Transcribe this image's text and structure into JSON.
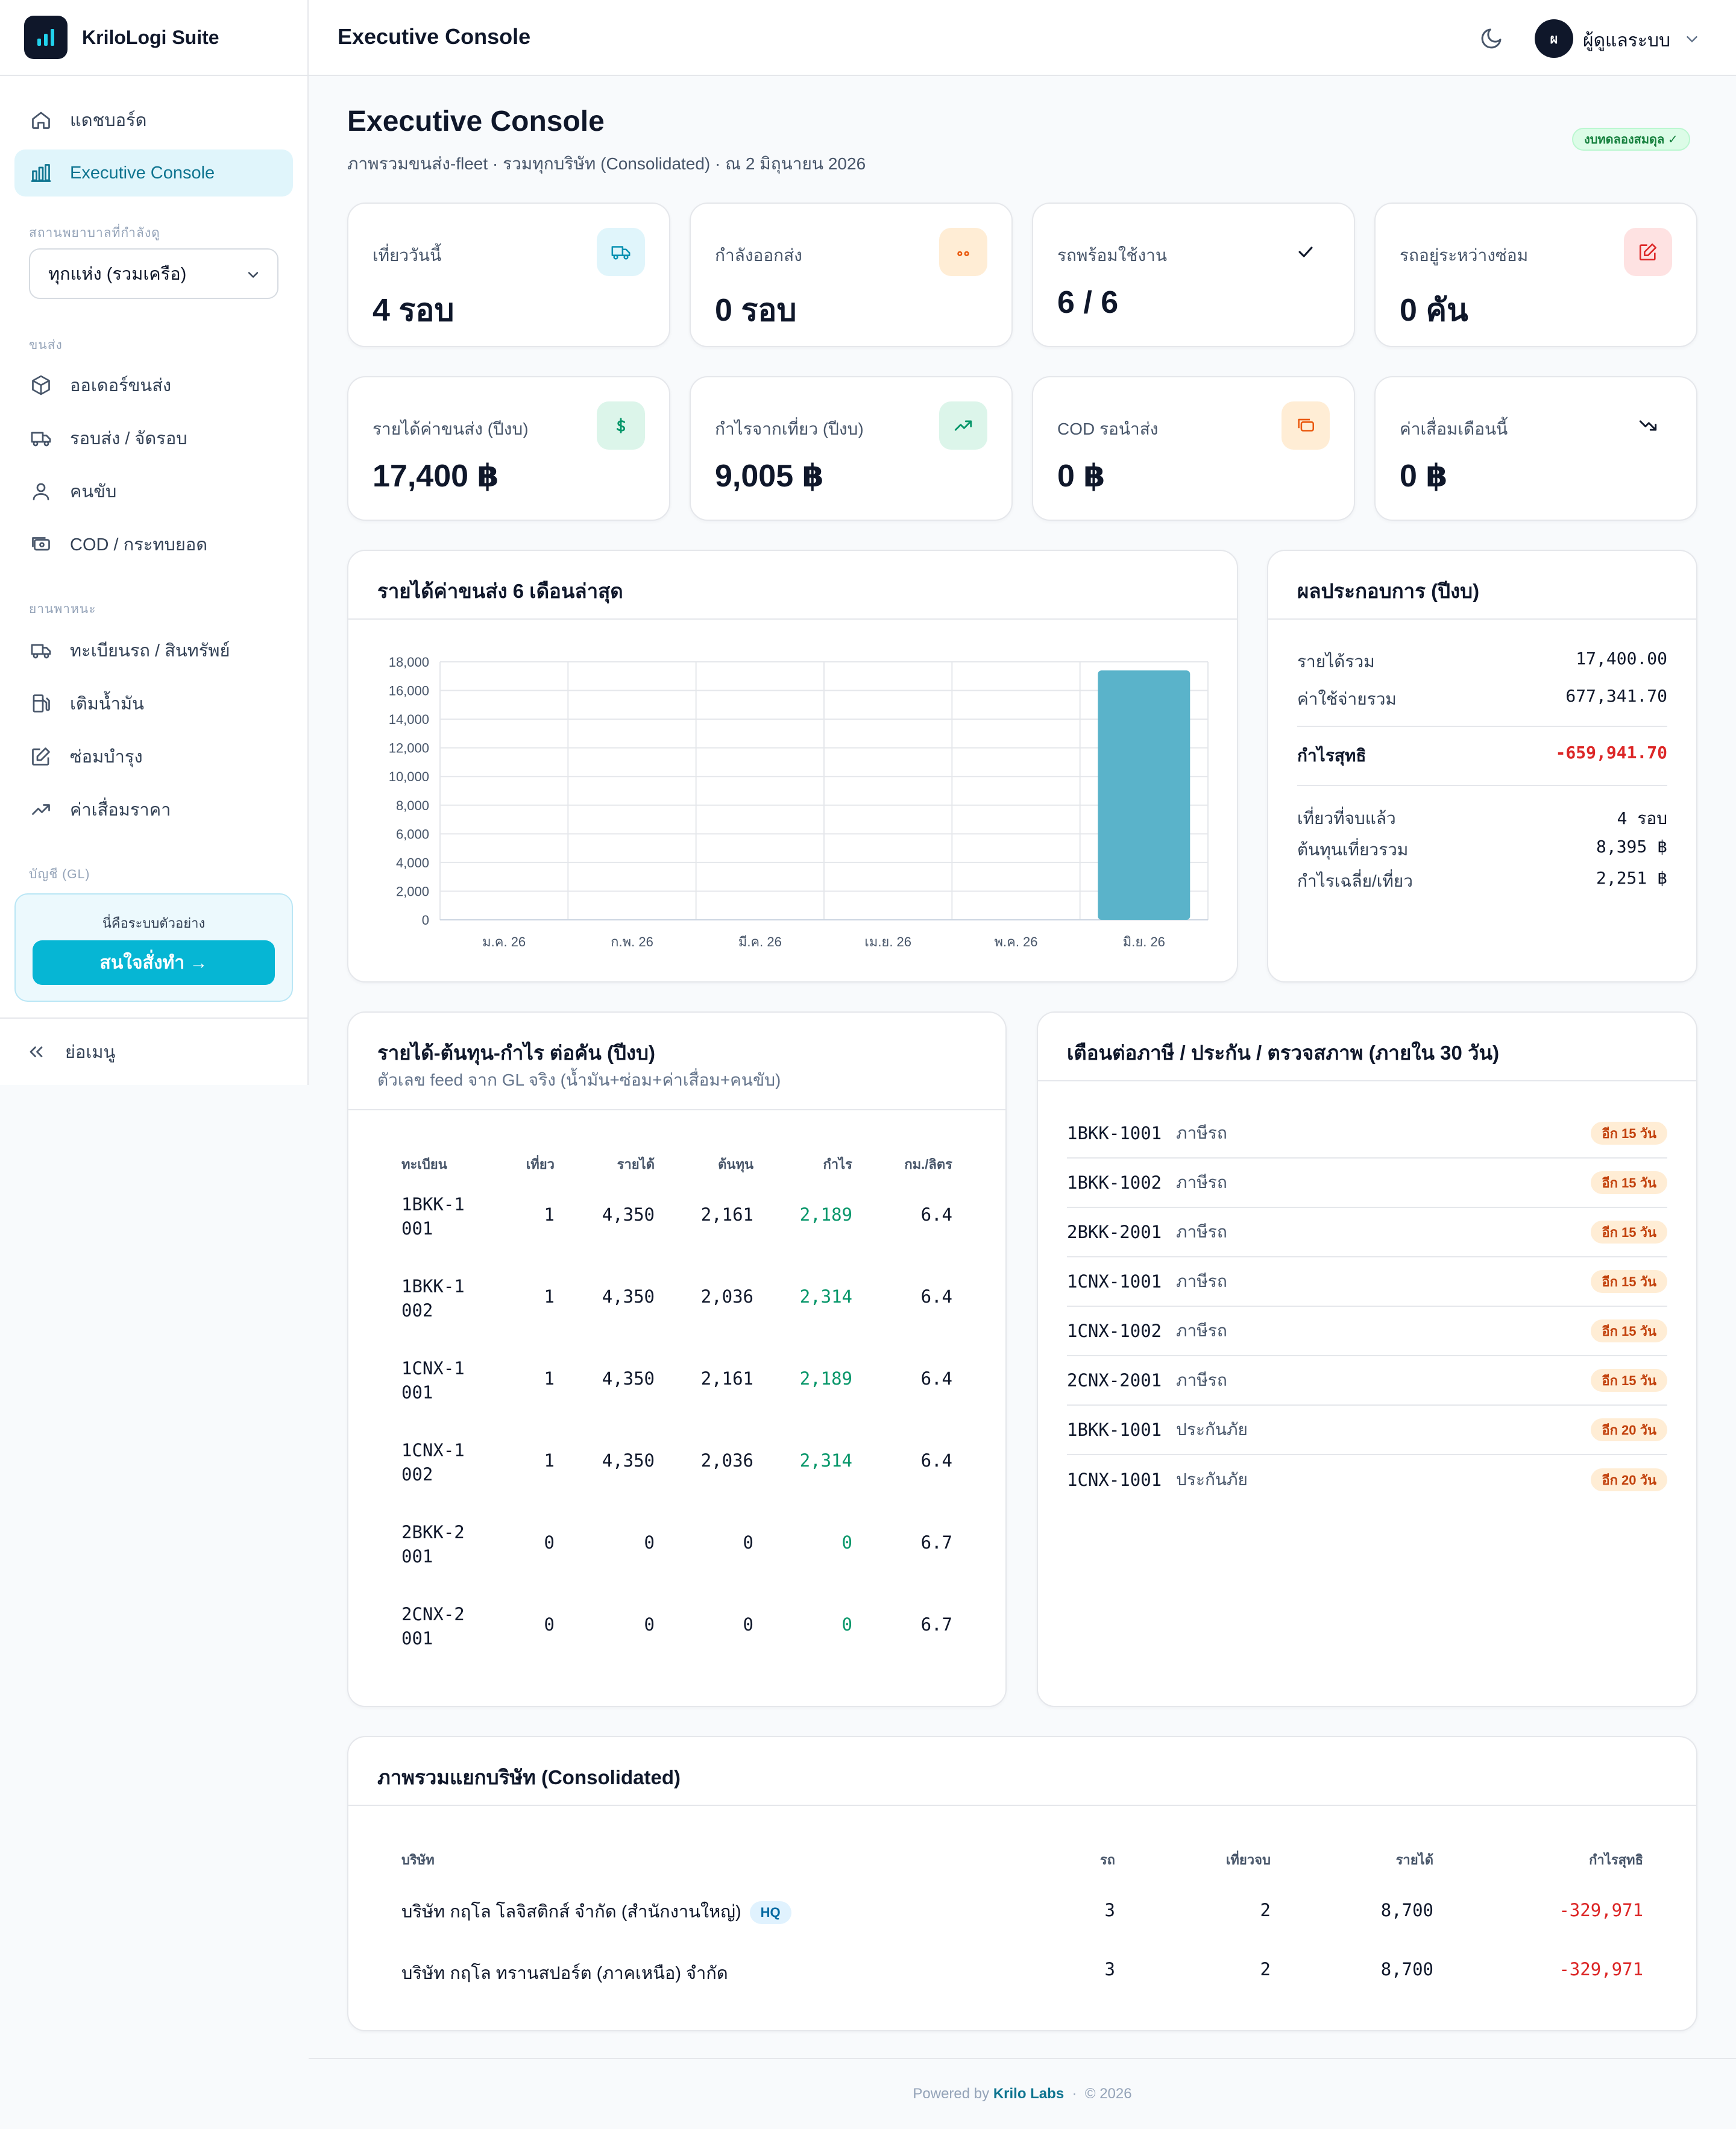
{
  "app": {
    "brand": "KriloLogi Suite",
    "header_title": "Executive Console",
    "user_initial": "ผ",
    "user_name": "ผู้ดูแลระบบ"
  },
  "sidebar": {
    "items": [
      {
        "label": "แดชบอร์ด",
        "icon": "home-icon"
      },
      {
        "label": "Executive Console",
        "icon": "chart-bar-icon",
        "active": true
      }
    ],
    "scope_label": "สถานพยาบาลที่กำลังดู",
    "scope_value": "ทุกแห่ง (รวมเครือ)",
    "section_shipping": "ขนส่ง",
    "shipping_items": [
      {
        "label": "ออเดอร์ขนส่ง",
        "icon": "box-icon"
      },
      {
        "label": "รอบส่ง / จัดรอบ",
        "icon": "truck-icon"
      },
      {
        "label": "คนขับ",
        "icon": "user-icon"
      },
      {
        "label": "COD / กระทบยอด",
        "icon": "cash-icon"
      }
    ],
    "section_vehicle": "ยานพาหนะ",
    "vehicle_items": [
      {
        "label": "ทะเบียนรถ / สินทรัพย์",
        "icon": "truck-icon"
      },
      {
        "label": "เติมน้ำมัน",
        "icon": "fuel-icon"
      },
      {
        "label": "ซ่อมบำรุง",
        "icon": "edit-icon"
      },
      {
        "label": "ค่าเสื่อมราคา",
        "icon": "trend-icon"
      }
    ],
    "section_gl": "บัญชี (GL)",
    "demo_text": "นี่คือระบบตัวอย่าง",
    "demo_button": "สนใจสั่งทำ →",
    "collapse_label": "ย่อเมนู"
  },
  "page": {
    "title": "Executive Console",
    "subtitle": "ภาพรวมขนส่ง-fleet · รวมทุกบริษัท (Consolidated) · ณ 2 มิถุนายน 2026",
    "balance_badge": "งบทดลองสมดุล ✓"
  },
  "kpis": [
    {
      "label": "เที่ยววันนี้",
      "value": "4 รอบ",
      "icon": "truck-icon",
      "color": "#0891b2"
    },
    {
      "label": "กำลังออกส่ง",
      "value": "0 รอบ",
      "icon": "dots-icon",
      "color": "#ea580c"
    },
    {
      "label": "รถพร้อมใช้งาน",
      "value": "6 / 6",
      "icon": "check-icon",
      "color": "#0f172a"
    },
    {
      "label": "รถอยู่ระหว่างซ่อม",
      "value": "0 คัน",
      "icon": "edit-icon",
      "color": "#dc2626"
    },
    {
      "label": "รายได้ค่าขนส่ง (ปีงบ)",
      "value": "17,400 ฿",
      "icon": "dollar-icon",
      "color": "#059669"
    },
    {
      "label": "กำไรจากเที่ยว (ปีงบ)",
      "value": "9,005 ฿",
      "icon": "trend-up-icon",
      "color": "#059669"
    },
    {
      "label": "COD รอนำส่ง",
      "value": "0 ฿",
      "icon": "cash-icon",
      "color": "#ea580c"
    },
    {
      "label": "ค่าเสื่อมเดือนนี้",
      "value": "0 ฿",
      "icon": "trend-down-icon",
      "color": "#0f172a"
    }
  ],
  "revenue_chart": {
    "title": "รายได้ค่าขนส่ง 6 เดือนล่าสุด",
    "chart_data": {
      "type": "bar",
      "categories": [
        "ม.ค. 26",
        "ก.พ. 26",
        "มี.ค. 26",
        "เม.ย. 26",
        "พ.ค. 26",
        "มิ.ย. 26"
      ],
      "values": [
        0,
        0,
        0,
        0,
        0,
        17400
      ],
      "ylim": [
        0,
        18000
      ],
      "yticks": [
        0,
        2000,
        4000,
        6000,
        8000,
        10000,
        12000,
        14000,
        16000,
        18000
      ],
      "ytick_labels": [
        "0",
        "2,000",
        "4,000",
        "6,000",
        "8,000",
        "10,000",
        "12,000",
        "14,000",
        "16,000",
        "18,000"
      ],
      "grid": true,
      "bar_color": "#5ab3ca"
    }
  },
  "performance": {
    "title": "ผลประกอบการ (ปีงบ)",
    "revenue_label": "รายได้รวม",
    "revenue": "17,400.00",
    "expense_label": "ค่าใช้จ่ายรวม",
    "expense": "677,341.70",
    "net_label": "กำไรสุทธิ",
    "net": "-659,941.70",
    "trips_label": "เที่ยวที่จบแล้ว",
    "trips": "4 รอบ",
    "trip_cost_label": "ต้นทุนเที่ยวรวม",
    "trip_cost": "8,395 ฿",
    "avg_profit_label": "กำไรเฉลี่ย/เที่ยว",
    "avg_profit": "2,251 ฿"
  },
  "per_truck": {
    "title": "รายได้-ต้นทุน-กำไร ต่อคัน (ปีงบ)",
    "subtitle": "ตัวเลข feed จาก GL จริง (น้ำมัน+ซ่อม+ค่าเสื่อม+คนขับ)",
    "headers": [
      "ทะเบียน",
      "เที่ยว",
      "รายได้",
      "ต้นทุน",
      "กำไร",
      "กม./ลิตร"
    ],
    "rows": [
      {
        "plate": "1BKK-1001",
        "trips": "1",
        "revenue": "4,350",
        "cost": "2,161",
        "profit": "2,189",
        "kml": "6.4"
      },
      {
        "plate": "1BKK-1002",
        "trips": "1",
        "revenue": "4,350",
        "cost": "2,036",
        "profit": "2,314",
        "kml": "6.4"
      },
      {
        "plate": "1CNX-1001",
        "trips": "1",
        "revenue": "4,350",
        "cost": "2,161",
        "profit": "2,189",
        "kml": "6.4"
      },
      {
        "plate": "1CNX-1002",
        "trips": "1",
        "revenue": "4,350",
        "cost": "2,036",
        "profit": "2,314",
        "kml": "6.4"
      },
      {
        "plate": "2BKK-2001",
        "trips": "0",
        "revenue": "0",
        "cost": "0",
        "profit": "0",
        "kml": "6.7"
      },
      {
        "plate": "2CNX-2001",
        "trips": "0",
        "revenue": "0",
        "cost": "0",
        "profit": "0",
        "kml": "6.7"
      }
    ]
  },
  "renewals": {
    "title": "เตือนต่อภาษี / ประกัน / ตรวจสภาพ (ภายใน 30 วัน)",
    "rows": [
      {
        "plate": "1BKK-1001",
        "type": "ภาษีรถ",
        "due": "อีก 15 วัน"
      },
      {
        "plate": "1BKK-1002",
        "type": "ภาษีรถ",
        "due": "อีก 15 วัน"
      },
      {
        "plate": "2BKK-2001",
        "type": "ภาษีรถ",
        "due": "อีก 15 วัน"
      },
      {
        "plate": "1CNX-1001",
        "type": "ภาษีรถ",
        "due": "อีก 15 วัน"
      },
      {
        "plate": "1CNX-1002",
        "type": "ภาษีรถ",
        "due": "อีก 15 วัน"
      },
      {
        "plate": "2CNX-2001",
        "type": "ภาษีรถ",
        "due": "อีก 15 วัน"
      },
      {
        "plate": "1BKK-1001",
        "type": "ประกันภัย",
        "due": "อีก 20 วัน"
      },
      {
        "plate": "1CNX-1001",
        "type": "ประกันภัย",
        "due": "อีก 20 วัน"
      }
    ]
  },
  "consolidated": {
    "title": "ภาพรวมแยกบริษัท (Consolidated)",
    "headers": [
      "บริษัท",
      "รถ",
      "เที่ยวจบ",
      "รายได้",
      "กำไรสุทธิ"
    ],
    "rows": [
      {
        "company": "บริษัท กฤโล โลจิสติกส์ จำกัด (สำนักงานใหญ่)",
        "hq": "HQ",
        "trucks": "3",
        "trips": "2",
        "revenue": "8,700",
        "net": "-329,971"
      },
      {
        "company": "บริษัท กฤโล ทรานสปอร์ต (ภาคเหนือ) จำกัด",
        "trucks": "3",
        "trips": "2",
        "revenue": "8,700",
        "net": "-329,971"
      }
    ]
  },
  "footer": {
    "powered_by": "Powered by",
    "company": "Krilo Labs",
    "year": "© 2026"
  }
}
